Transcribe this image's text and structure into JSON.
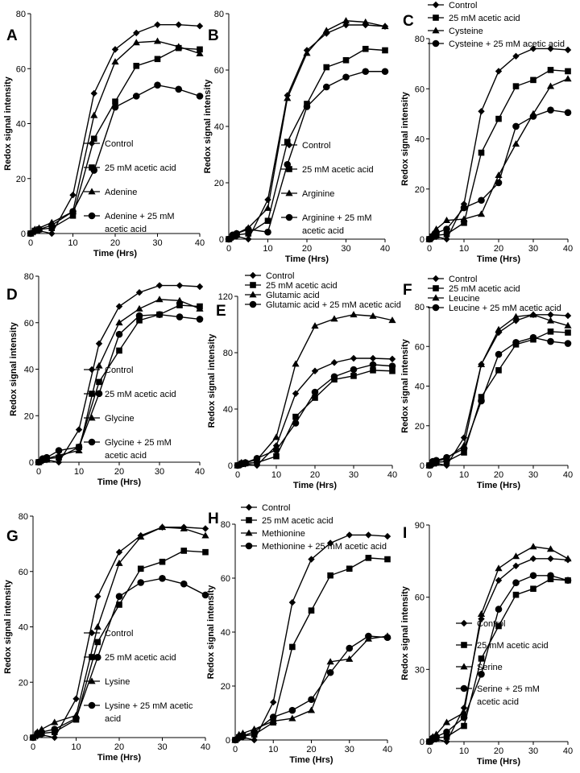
{
  "figure": {
    "marker_color": "#000000",
    "marker_shapes": {
      "Control": "diamond",
      "Acetic": "square",
      "AminoAcid": "triangle",
      "Combined": "circle"
    }
  },
  "chart_data": [
    {
      "panel": "A",
      "type": "line",
      "xlabel": "Time (Hrs)",
      "ylabel": "Redox signal intensity",
      "xlim": [
        0,
        40
      ],
      "ylim": [
        0,
        80
      ],
      "xticks": [
        0,
        10,
        20,
        30,
        40
      ],
      "yticks": [
        0,
        20,
        40,
        60,
        80
      ],
      "legend_position": "center-right",
      "x": [
        0,
        1,
        2,
        5,
        10,
        15,
        20,
        25,
        30,
        35,
        40
      ],
      "series": [
        {
          "name": "Control",
          "marker": "diamond",
          "values": [
            0,
            0.5,
            1,
            0,
            14,
            51,
            67,
            73,
            76,
            76,
            75.5
          ]
        },
        {
          "name": "25 mM acetic acid",
          "marker": "square",
          "values": [
            0,
            1,
            1.5,
            2,
            6.5,
            34.5,
            48,
            61,
            63.5,
            67.5,
            67
          ]
        },
        {
          "name": "Adenine",
          "marker": "triangle",
          "values": [
            0,
            1.5,
            2,
            4,
            8,
            43,
            62.5,
            69.5,
            70,
            68,
            65.5
          ]
        },
        {
          "name": "Adenine + 25 mM acetic acid",
          "marker": "circle",
          "values": [
            0,
            1,
            1.5,
            3,
            8,
            23,
            46,
            50,
            54,
            52.5,
            50
          ]
        }
      ]
    },
    {
      "panel": "B",
      "type": "line",
      "xlabel": "Time (Hrs)",
      "ylabel": "Redox signal intensity",
      "xlim": [
        0,
        40
      ],
      "ylim": [
        0,
        80
      ],
      "xticks": [
        0,
        10,
        20,
        30,
        40
      ],
      "yticks": [
        0,
        20,
        40,
        60,
        80
      ],
      "legend_position": "center-right",
      "x": [
        0,
        1,
        2,
        5,
        10,
        15,
        20,
        25,
        30,
        35,
        40
      ],
      "series": [
        {
          "name": "Control",
          "marker": "diamond",
          "values": [
            0,
            0.5,
            1,
            0,
            14,
            51,
            67,
            73,
            76,
            76,
            75.5
          ]
        },
        {
          "name": "25 mM acetic acid",
          "marker": "square",
          "values": [
            0,
            1,
            1.5,
            2,
            6.5,
            34.5,
            48,
            61,
            63.5,
            67.5,
            67
          ]
        },
        {
          "name": "Arginine",
          "marker": "triangle",
          "values": [
            0,
            1,
            2,
            4,
            11,
            50,
            66,
            74,
            77.5,
            77,
            75.5
          ]
        },
        {
          "name": "Arginine + 25 mM acetic acid",
          "marker": "circle",
          "values": [
            0,
            1.5,
            2,
            3.5,
            2.5,
            26.5,
            47,
            54,
            57.5,
            59.5,
            59.5
          ]
        }
      ]
    },
    {
      "panel": "C",
      "type": "line",
      "xlabel": "Time (Hrs)",
      "ylabel": "Redox signal intensity",
      "xlim": [
        0,
        40
      ],
      "ylim": [
        0,
        80
      ],
      "xticks": [
        0,
        10,
        20,
        30,
        40
      ],
      "yticks": [
        0,
        20,
        40,
        60,
        80
      ],
      "legend_position": "top",
      "x": [
        0,
        1,
        2,
        5,
        10,
        15,
        20,
        25,
        30,
        35,
        40
      ],
      "series": [
        {
          "name": "Control",
          "marker": "diamond",
          "values": [
            0,
            0.5,
            1,
            0,
            14,
            51,
            67,
            73,
            76,
            76,
            75.5
          ]
        },
        {
          "name": "25 mM acetic acid",
          "marker": "square",
          "values": [
            0,
            1,
            1.5,
            2,
            6.5,
            34.5,
            48,
            61,
            63.5,
            67.5,
            67
          ]
        },
        {
          "name": "Cysteine",
          "marker": "triangle",
          "values": [
            0,
            2,
            4,
            7.5,
            8,
            10,
            25.5,
            38,
            50,
            61,
            64
          ]
        },
        {
          "name": "Cysteine + 25 mM acetic acid",
          "marker": "circle",
          "values": [
            0,
            1,
            2.5,
            4,
            12.5,
            15.5,
            22.5,
            45,
            49,
            51.5,
            50.5
          ]
        }
      ]
    },
    {
      "panel": "D",
      "type": "line",
      "xlabel": "Time (Hrs)",
      "ylabel": "Redox signal intensity",
      "xlim": [
        0,
        40
      ],
      "ylim": [
        0,
        80
      ],
      "xticks": [
        0,
        10,
        20,
        30,
        40
      ],
      "yticks": [
        0,
        20,
        40,
        60,
        80
      ],
      "legend_position": "center-right",
      "x": [
        0,
        1,
        2,
        5,
        10,
        15,
        20,
        25,
        30,
        35,
        40
      ],
      "series": [
        {
          "name": "Control",
          "marker": "diamond",
          "values": [
            0,
            0.5,
            1,
            0,
            14,
            51,
            67,
            73,
            76,
            76,
            75.5
          ]
        },
        {
          "name": "25 mM acetic acid",
          "marker": "square",
          "values": [
            0,
            1,
            1.5,
            2,
            6.5,
            34.5,
            48,
            61,
            63.5,
            67.5,
            67
          ]
        },
        {
          "name": "Glycine",
          "marker": "triangle",
          "values": [
            0,
            1,
            1.5,
            3,
            5,
            41.5,
            60,
            66,
            70,
            69.5,
            66
          ]
        },
        {
          "name": "Glycine + 25 mM acetic acid",
          "marker": "circle",
          "values": [
            0,
            1.5,
            2,
            5,
            6.5,
            29.5,
            55,
            63,
            63.5,
            62.5,
            61.5
          ]
        }
      ]
    },
    {
      "panel": "E",
      "type": "line",
      "xlabel": "Time (Hrs)",
      "ylabel": "Redox signal intensity",
      "xlim": [
        0,
        40
      ],
      "ylim": [
        0,
        120
      ],
      "xticks": [
        0,
        10,
        20,
        30,
        40
      ],
      "yticks": [
        0,
        40,
        80,
        120
      ],
      "legend_position": "top",
      "x": [
        0,
        1,
        2,
        5,
        10,
        15,
        20,
        25,
        30,
        35,
        40
      ],
      "series": [
        {
          "name": "Control",
          "marker": "diamond",
          "values": [
            0,
            0.5,
            1,
            0,
            14,
            51,
            67,
            73,
            76,
            76,
            75.5
          ]
        },
        {
          "name": "25 mM acetic acid",
          "marker": "square",
          "values": [
            0,
            1,
            1.5,
            2,
            6.5,
            34.5,
            48,
            61,
            63.5,
            67.5,
            67
          ]
        },
        {
          "name": "Glutamic acid",
          "marker": "triangle",
          "values": [
            0,
            2,
            2,
            4,
            20,
            72,
            99,
            104,
            107,
            106,
            103
          ]
        },
        {
          "name": "Glutamic acid + 25 mM acetic acid",
          "marker": "circle",
          "values": [
            0,
            1.5,
            2,
            5,
            11,
            30,
            52,
            63,
            68,
            71.5,
            70.5
          ]
        }
      ]
    },
    {
      "panel": "F",
      "type": "line",
      "xlabel": "Time (Hrs)",
      "ylabel": "Redox signal intensity",
      "xlim": [
        0,
        40
      ],
      "ylim": [
        0,
        80
      ],
      "xticks": [
        0,
        10,
        20,
        30,
        40
      ],
      "yticks": [
        0,
        20,
        40,
        60,
        80
      ],
      "legend_position": "top",
      "x": [
        0,
        1,
        2,
        5,
        10,
        15,
        20,
        25,
        30,
        35,
        40
      ],
      "series": [
        {
          "name": "Control",
          "marker": "diamond",
          "values": [
            0,
            0.5,
            1,
            0,
            14,
            51,
            67,
            73,
            76,
            76,
            75.5
          ]
        },
        {
          "name": "25 mM acetic acid",
          "marker": "square",
          "values": [
            0,
            1,
            1.5,
            2,
            6.5,
            34.5,
            48,
            61,
            63.5,
            67.5,
            67
          ]
        },
        {
          "name": "Leucine",
          "marker": "triangle",
          "values": [
            0,
            1.5,
            2,
            3.5,
            10,
            51,
            68.5,
            75,
            76,
            73,
            70.5
          ]
        },
        {
          "name": "Leucine + 25 mM acetic acid",
          "marker": "circle",
          "values": [
            0,
            2,
            2.5,
            4,
            8.5,
            32.5,
            56,
            62,
            64.5,
            62.5,
            61.5
          ]
        }
      ]
    },
    {
      "panel": "G",
      "type": "line",
      "xlabel": "Time (Hrs)",
      "ylabel": "Redox signal intensity",
      "xlim": [
        0,
        40
      ],
      "ylim": [
        0,
        80
      ],
      "xticks": [
        0,
        10,
        20,
        30,
        40
      ],
      "yticks": [
        0,
        20,
        40,
        60,
        80
      ],
      "legend_position": "center-right",
      "x": [
        0,
        1,
        2,
        5,
        10,
        15,
        20,
        25,
        30,
        35,
        40
      ],
      "series": [
        {
          "name": "Control",
          "marker": "diamond",
          "values": [
            0,
            0.5,
            1,
            0,
            14,
            51,
            67,
            73,
            76,
            76,
            75.5
          ]
        },
        {
          "name": "25 mM acetic acid",
          "marker": "square",
          "values": [
            0,
            1,
            1.5,
            2,
            6.5,
            34.5,
            48,
            61,
            63.5,
            67.5,
            67
          ]
        },
        {
          "name": "Lysine",
          "marker": "triangle",
          "values": [
            0,
            2,
            3,
            5.5,
            8,
            40,
            63,
            72.5,
            76,
            75.5,
            73
          ]
        },
        {
          "name": "Lysine + 25 mM acetic acid",
          "marker": "circle",
          "values": [
            0,
            1.5,
            2,
            3,
            7,
            29,
            51,
            56,
            57.5,
            55.5,
            51.5
          ]
        }
      ]
    },
    {
      "panel": "H",
      "type": "line",
      "xlabel": "Time (Hrs)",
      "ylabel": "Redox signal intensity",
      "xlim": [
        0,
        40
      ],
      "ylim": [
        0,
        80
      ],
      "xticks": [
        0,
        10,
        20,
        30,
        40
      ],
      "yticks": [
        0,
        20,
        40,
        60,
        80
      ],
      "legend_position": "top",
      "x": [
        0,
        1,
        2,
        5,
        10,
        15,
        20,
        25,
        30,
        35,
        40
      ],
      "series": [
        {
          "name": "Control",
          "marker": "diamond",
          "values": [
            0,
            0.5,
            1,
            0,
            14,
            51,
            67,
            73,
            76,
            76,
            75.5
          ]
        },
        {
          "name": "25 mM acetic acid",
          "marker": "square",
          "values": [
            0,
            1,
            1.5,
            2,
            6.5,
            34.5,
            48,
            61,
            63.5,
            67.5,
            67
          ]
        },
        {
          "name": "Methionine",
          "marker": "triangle",
          "values": [
            0,
            2,
            2.5,
            4,
            7,
            8,
            11,
            29,
            30,
            37.5,
            38.5
          ]
        },
        {
          "name": "Methionine + 25 mM acetic acid",
          "marker": "circle",
          "values": [
            0,
            1,
            1.5,
            3,
            8.5,
            11,
            15,
            25,
            34,
            38.5,
            38
          ]
        }
      ]
    },
    {
      "panel": "I",
      "type": "line",
      "xlabel": "Time (Hrs)",
      "ylabel": "Redox signal intensity",
      "xlim": [
        0,
        40
      ],
      "ylim": [
        0,
        90
      ],
      "xticks": [
        0,
        10,
        20,
        30,
        40
      ],
      "yticks": [
        0,
        30,
        60,
        90
      ],
      "legend_position": "bottom-right",
      "x": [
        0,
        1,
        2,
        5,
        10,
        15,
        20,
        25,
        30,
        35,
        40
      ],
      "series": [
        {
          "name": "Control",
          "marker": "diamond",
          "values": [
            0,
            0.5,
            1,
            0,
            14,
            51,
            67,
            73,
            76,
            76,
            75.5
          ]
        },
        {
          "name": "25 mM acetic acid",
          "marker": "square",
          "values": [
            0,
            1,
            1.5,
            2,
            6.5,
            34.5,
            48,
            61,
            63.5,
            67.5,
            67
          ]
        },
        {
          "name": "Serine",
          "marker": "triangle",
          "values": [
            0,
            2,
            3,
            8,
            12,
            53,
            72,
            77,
            81,
            80,
            76
          ]
        },
        {
          "name": "Serine + 25 mM acetic acid",
          "marker": "circle",
          "values": [
            0,
            1.5,
            2,
            4,
            10,
            28,
            55,
            66,
            69,
            69,
            67
          ]
        }
      ]
    }
  ]
}
